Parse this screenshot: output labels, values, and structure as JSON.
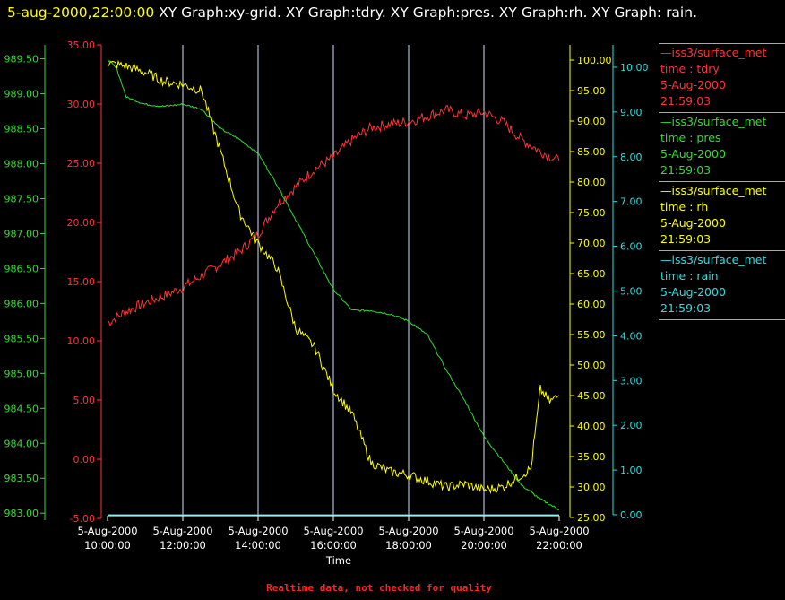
{
  "header": {
    "timestamp": "5-aug-2000,22:00:00",
    "graphs": "XY Graph:xy-grid.  XY Graph:tdry.  XY Graph:pres.  XY Graph:rh.  XY Graph: rain."
  },
  "footer": {
    "text": "Realtime data, not checked for quality"
  },
  "colors": {
    "tdry": "#ff3333",
    "pres": "#33dd33",
    "rh": "#ffff00",
    "rain": "#33dddd",
    "grid": "#cce0ff"
  },
  "legend": [
    {
      "series": "tdry",
      "name": "iss3/surface_met",
      "var": "time : tdry",
      "date": "5-Aug-2000",
      "time": "21:59:03"
    },
    {
      "series": "pres",
      "name": "iss3/surface_met",
      "var": "time : pres",
      "date": "5-Aug-2000",
      "time": "21:59:03"
    },
    {
      "series": "rh",
      "name": "iss3/surface_met",
      "var": "time : rh",
      "date": "5-Aug-2000",
      "time": "21:59:03"
    },
    {
      "series": "rain",
      "name": "iss3/surface_met",
      "var": "time : rain",
      "date": "5-Aug-2000",
      "time": "21:59:03"
    }
  ],
  "chart_data": {
    "type": "line",
    "xlabel": "Time",
    "xlim": [
      "2000-08-05 10:00",
      "2000-08-05 22:00"
    ],
    "x_ticks": [
      {
        "date": "5-Aug-2000",
        "time": "10:00:00"
      },
      {
        "date": "5-Aug-2000",
        "time": "12:00:00"
      },
      {
        "date": "5-Aug-2000",
        "time": "14:00:00"
      },
      {
        "date": "5-Aug-2000",
        "time": "16:00:00"
      },
      {
        "date": "5-Aug-2000",
        "time": "18:00:00"
      },
      {
        "date": "5-Aug-2000",
        "time": "20:00:00"
      },
      {
        "date": "5-Aug-2000",
        "time": "22:00:00"
      }
    ],
    "grid": "vertical",
    "axes": {
      "tdry": {
        "ylim": [
          -5,
          35
        ],
        "ticks": [
          "-5.00",
          "0.00",
          "5.00",
          "10.00",
          "15.00",
          "20.00",
          "25.00",
          "30.00",
          "35.00"
        ]
      },
      "pres": {
        "ylim": [
          982.9,
          989.7
        ],
        "ticks": [
          "983.00",
          "983.50",
          "984.00",
          "984.50",
          "985.00",
          "985.50",
          "986.00",
          "986.50",
          "987.00",
          "987.50",
          "988.00",
          "988.50",
          "989.00",
          "989.50"
        ]
      },
      "rh": {
        "ylim": [
          25,
          102.5
        ],
        "ticks": [
          "25.00",
          "30.00",
          "35.00",
          "40.00",
          "45.00",
          "50.00",
          "55.00",
          "60.00",
          "65.00",
          "70.00",
          "75.00",
          "80.00",
          "85.00",
          "90.00",
          "95.00",
          "100.00"
        ]
      },
      "rain": {
        "ylim": [
          0,
          10.5
        ],
        "ticks": [
          "0.00",
          "1.00",
          "2.00",
          "3.00",
          "4.00",
          "5.00",
          "6.00",
          "7.00",
          "8.00",
          "9.00",
          "10.00"
        ]
      }
    },
    "series": [
      {
        "name": "tdry",
        "x": [
          "10:00",
          "10:30",
          "11:00",
          "11:30",
          "12:00",
          "12:30",
          "13:00",
          "13:30",
          "14:00",
          "14:30",
          "15:00",
          "15:30",
          "16:00",
          "16:30",
          "17:00",
          "17:30",
          "18:00",
          "18:30",
          "19:00",
          "19:30",
          "20:00",
          "20:30",
          "21:00",
          "21:30",
          "22:00"
        ],
        "values": [
          11.5,
          12.5,
          13.2,
          13.8,
          14.5,
          15.5,
          16.5,
          17.5,
          19.0,
          21.5,
          23.0,
          24.5,
          25.5,
          27.0,
          28.0,
          28.3,
          28.5,
          29.0,
          29.5,
          29.0,
          29.3,
          28.5,
          27.0,
          26.0,
          25.2
        ]
      },
      {
        "name": "pres",
        "x": [
          "10:00",
          "10:15",
          "10:30",
          "11:00",
          "11:30",
          "12:00",
          "12:30",
          "13:00",
          "13:30",
          "14:00",
          "14:30",
          "15:00",
          "15:30",
          "16:00",
          "16:30",
          "17:00",
          "17:30",
          "18:00",
          "18:30",
          "19:00",
          "19:30",
          "20:00",
          "20:30",
          "21:00",
          "21:30",
          "22:00"
        ],
        "values": [
          989.5,
          989.35,
          988.95,
          988.85,
          988.82,
          988.85,
          988.78,
          988.5,
          988.35,
          988.15,
          987.7,
          987.2,
          986.7,
          986.2,
          985.9,
          985.9,
          985.85,
          985.75,
          985.55,
          985.05,
          984.6,
          984.1,
          983.75,
          983.4,
          983.2,
          983.05
        ]
      },
      {
        "name": "rh",
        "x": [
          "10:00",
          "10:30",
          "11:00",
          "11:30",
          "12:00",
          "12:30",
          "13:00",
          "13:30",
          "14:00",
          "14:30",
          "15:00",
          "15:30",
          "16:00",
          "16:30",
          "17:00",
          "17:30",
          "18:00",
          "18:30",
          "19:00",
          "19:30",
          "20:00",
          "20:30",
          "21:00",
          "21:15",
          "21:30",
          "21:45",
          "22:00"
        ],
        "values": [
          99.5,
          99,
          98,
          96.5,
          96,
          95,
          85,
          75,
          70,
          66,
          56,
          53,
          46,
          42,
          34,
          32.5,
          32,
          31,
          30,
          30.5,
          29.5,
          30,
          32,
          33,
          46,
          44,
          45
        ]
      },
      {
        "name": "rain",
        "x": [
          "10:00",
          "22:00"
        ],
        "values": [
          0,
          0
        ]
      }
    ]
  }
}
